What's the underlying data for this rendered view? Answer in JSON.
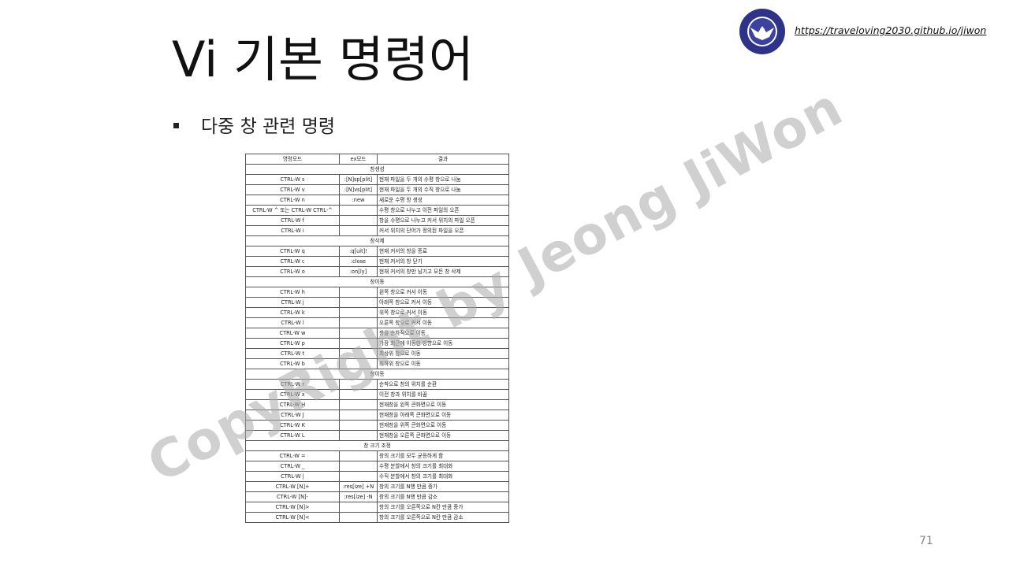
{
  "header": {
    "url": "https://traveloving2030.github.io/jiwon",
    "logo_icon": "university-eagle-emblem-icon"
  },
  "slide": {
    "title": "Vi 기본 명령어",
    "bullet": "다중 창 관련 명령",
    "page_number": "71",
    "watermark": "CopyRight by Jeong JiWon"
  },
  "table": {
    "headers": [
      "명령모드",
      "ex모드",
      "결과"
    ],
    "rows": [
      {
        "section": "창생성"
      },
      {
        "cells": [
          "CTRL-W s",
          ":[N]sp[plit]",
          "현재 파일을 두 개의 수평 창으로 나눔"
        ]
      },
      {
        "cells": [
          "CTRL-W v",
          ":[N]vs[plit]",
          "현재 파일을 두 개의 수직 창으로 나눔"
        ]
      },
      {
        "cells": [
          "CTRL-W n",
          ":new",
          "새로운 수평 창 생성"
        ]
      },
      {
        "cells": [
          "CTRL-W ^ 또는 CTRL-W CTRL-^",
          "",
          "수평 창으로 나누고 이전 파일의 오픈"
        ]
      },
      {
        "cells": [
          "CTRL-W f",
          "",
          "창을 수평으로 나누고 커서 위치의 파일 오픈"
        ]
      },
      {
        "cells": [
          "CTRL-W i",
          "",
          "커서 위치의 단어가 정의된 파일을 오픈"
        ]
      },
      {
        "section": "창삭제"
      },
      {
        "cells": [
          "CTRL-W q",
          ":q[uit]!",
          "현재 커서의 창을 종료"
        ]
      },
      {
        "cells": [
          "CTRL-W c",
          ":close",
          "현재 커서의 창 닫기"
        ]
      },
      {
        "cells": [
          "CTRL-W o",
          ":on[ly]",
          "현재 커서의 창만 남기고 모든 창 삭제"
        ]
      },
      {
        "section": "창이동"
      },
      {
        "cells": [
          "CTRL-W h",
          "",
          "왼쪽 창으로 커서 이동"
        ]
      },
      {
        "cells": [
          "CTRL-W j",
          "",
          "아래쪽 창으로 커서 이동"
        ]
      },
      {
        "cells": [
          "CTRL-W k",
          "",
          "위쪽 창으로 커서 이동"
        ]
      },
      {
        "cells": [
          "CTRL-W l",
          "",
          "오른쪽 창으로 커서 이동"
        ]
      },
      {
        "cells": [
          "CTRL-W w",
          "",
          "창을 순차적으로 이동"
        ]
      },
      {
        "cells": [
          "CTRL-W p",
          "",
          "가장 최근에 이동한 방향으로 이동"
        ]
      },
      {
        "cells": [
          "CTRL-W t",
          "",
          "최상위 창으로 이동"
        ]
      },
      {
        "cells": [
          "CTRL-W b",
          "",
          "최하위 창으로 이동"
        ]
      },
      {
        "section": "창이동"
      },
      {
        "cells": [
          "CTRL-W r",
          "",
          "순착으로 창의 위치를 순환"
        ]
      },
      {
        "cells": [
          "CTRL-W x",
          "",
          "이전 창과 위치를 바꿈"
        ]
      },
      {
        "cells": [
          "CTRL-W H",
          "",
          "현재창을 왼쪽 큰화면으로 이동"
        ]
      },
      {
        "cells": [
          "CTRL-W J",
          "",
          "현재창을 아래쪽 큰화면으로 이동"
        ]
      },
      {
        "cells": [
          "CTRL-W K",
          "",
          "현재창을 위쪽 큰화면으로 이동"
        ]
      },
      {
        "cells": [
          "CTRL-W L",
          "",
          "현재창을 오른쪽 큰화면으로 이동"
        ]
      },
      {
        "section": "창 크기 조정"
      },
      {
        "cells": [
          "CTRL-W =",
          "",
          "창의 크기를 모두 균등하게 함"
        ]
      },
      {
        "cells": [
          "CTRL-W _",
          "",
          "수평 분할에서 창의 크기를 최대화"
        ]
      },
      {
        "cells": [
          "CTRL-W |",
          "",
          "수직 분할에서 창의 크기를 최대화"
        ]
      },
      {
        "cells": [
          "CTRL-W [N]+",
          ":res[ize] +N",
          "창의 크기를 N행 만큼 증가"
        ]
      },
      {
        "cells": [
          "CTRL-W [N]-",
          ":res[ize] -N",
          "창의 크기를 N행 만큼 감소"
        ]
      },
      {
        "cells": [
          "CTRL-W [N]>",
          "",
          "창의 크기를 오른쪽으로 N칸 만큼 증가"
        ]
      },
      {
        "cells": [
          "CTRL-W [N]<",
          "",
          "창의 크기를 오른쪽으로 N칸 만큼 감소"
        ]
      }
    ]
  }
}
